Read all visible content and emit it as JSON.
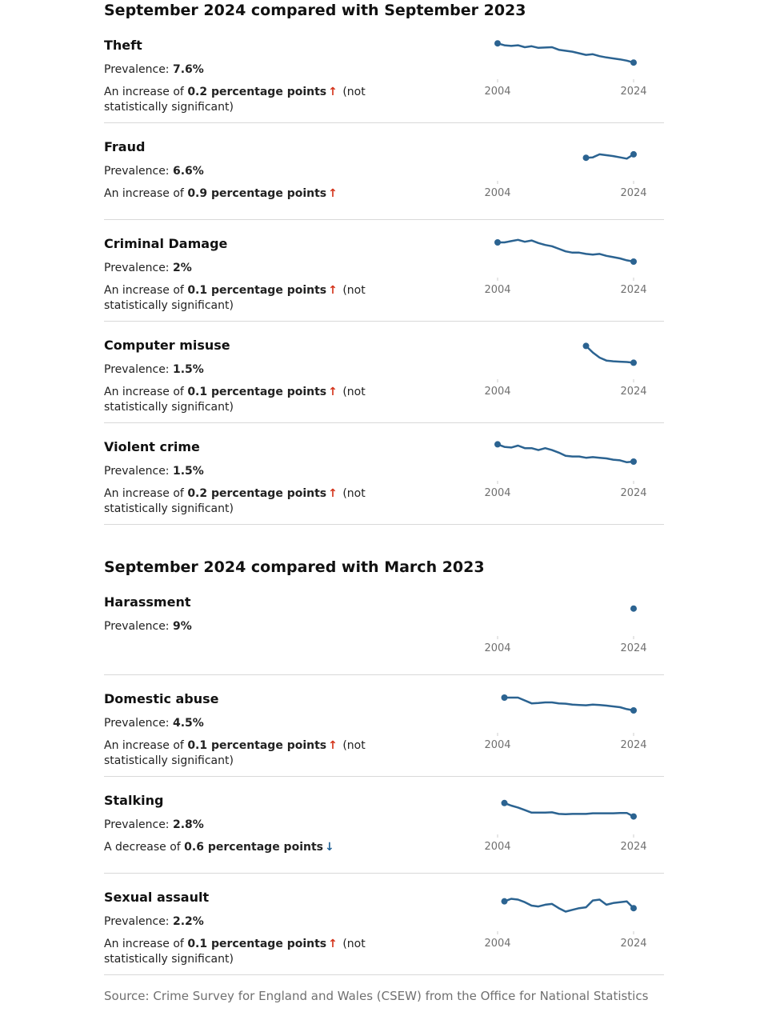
{
  "source": "Source: Crime Survey for England and Wales (CSEW) from the Office for National Statistics",
  "colors": {
    "line": "#2b6391",
    "increase_arrow": "#d4351c",
    "decrease_arrow": "#206095",
    "axis_label": "#707070"
  },
  "axis": {
    "start_label": "2004",
    "end_label": "2024"
  },
  "labels": {
    "prevalence_prefix": "Prevalence: "
  },
  "sections": [
    {
      "heading": "September 2024 compared with September 2023",
      "items": [
        {
          "title": "Theft",
          "prevalence": "7.6%",
          "change_prefix": "An increase of ",
          "change_value": "0.2 percentage points",
          "direction": "up",
          "change_suffix": " (not statistically significant)"
        },
        {
          "title": "Fraud",
          "prevalence": "6.6%",
          "change_prefix": "An increase of ",
          "change_value": "0.9 percentage points",
          "direction": "up",
          "change_suffix": ""
        },
        {
          "title": "Criminal Damage",
          "prevalence": "2%",
          "change_prefix": "An increase of ",
          "change_value": "0.1 percentage points",
          "direction": "up",
          "change_suffix": " (not statistically significant)"
        },
        {
          "title": "Computer misuse",
          "prevalence": "1.5%",
          "change_prefix": "An increase of ",
          "change_value": "0.1 percentage points",
          "direction": "up",
          "change_suffix": " (not statistically significant)"
        },
        {
          "title": "Violent crime",
          "prevalence": "1.5%",
          "change_prefix": "An increase of ",
          "change_value": "0.2 percentage points",
          "direction": "up",
          "change_suffix": " (not statistically significant)"
        }
      ]
    },
    {
      "heading": "September 2024 compared with March 2023",
      "items": [
        {
          "title": "Harassment",
          "prevalence": "9%",
          "change_prefix": "",
          "change_value": "",
          "direction": "",
          "change_suffix": ""
        },
        {
          "title": "Domestic abuse",
          "prevalence": "4.5%",
          "change_prefix": "An increase of ",
          "change_value": "0.1 percentage points",
          "direction": "up",
          "change_suffix": " (not statistically significant)"
        },
        {
          "title": "Stalking",
          "prevalence": "2.8%",
          "change_prefix": "A decrease of ",
          "change_value": "0.6 percentage points",
          "direction": "down",
          "change_suffix": ""
        },
        {
          "title": "Sexual assault",
          "prevalence": "2.2%",
          "change_prefix": "An increase of ",
          "change_value": "0.1 percentage points",
          "direction": "up",
          "change_suffix": " (not statistically significant)"
        }
      ]
    }
  ],
  "chart_data": [
    {
      "type": "line",
      "name": "Theft",
      "xlim": [
        2004,
        2024
      ],
      "ylim": [
        7.0,
        11.0
      ],
      "x": [
        2004,
        2005,
        2006,
        2007,
        2008,
        2009,
        2010,
        2011,
        2012,
        2013,
        2015,
        2017,
        2018,
        2019,
        2020,
        2022,
        2023,
        2024
      ],
      "y": [
        10.6,
        10.3,
        10.2,
        10.3,
        10.0,
        10.15,
        9.9,
        9.95,
        10.0,
        9.6,
        9.3,
        8.8,
        8.9,
        8.6,
        8.4,
        8.1,
        7.9,
        7.6
      ]
    },
    {
      "type": "line",
      "name": "Fraud",
      "xlim": [
        2004,
        2024
      ],
      "ylim": [
        5.0,
        8.0
      ],
      "x": [
        2017,
        2018,
        2019,
        2020,
        2021,
        2022,
        2023,
        2024
      ],
      "y": [
        6.2,
        6.25,
        6.6,
        6.5,
        6.4,
        6.25,
        6.1,
        6.6
      ]
    },
    {
      "type": "line",
      "name": "Criminal Damage",
      "xlim": [
        2004,
        2024
      ],
      "ylim": [
        1.5,
        5.5
      ],
      "x": [
        2004,
        2005,
        2006,
        2007,
        2008,
        2009,
        2010,
        2011,
        2012,
        2013,
        2014,
        2015,
        2016,
        2017,
        2018,
        2019,
        2020,
        2021,
        2022,
        2023,
        2024
      ],
      "y": [
        5.0,
        5.0,
        5.2,
        5.4,
        5.1,
        5.3,
        4.9,
        4.6,
        4.4,
        4.0,
        3.6,
        3.4,
        3.4,
        3.2,
        3.1,
        3.2,
        2.9,
        2.7,
        2.5,
        2.2,
        2.0
      ]
    },
    {
      "type": "line",
      "name": "Computer misuse",
      "xlim": [
        2004,
        2024
      ],
      "ylim": [
        1.0,
        4.5
      ],
      "x": [
        2017,
        2018,
        2019,
        2020,
        2021,
        2022,
        2023,
        2024
      ],
      "y": [
        3.8,
        2.9,
        2.2,
        1.8,
        1.7,
        1.65,
        1.6,
        1.5
      ]
    },
    {
      "type": "line",
      "name": "Violent crime",
      "xlim": [
        2004,
        2024
      ],
      "ylim": [
        1.0,
        3.0
      ],
      "x": [
        2004,
        2005,
        2006,
        2007,
        2008,
        2009,
        2010,
        2011,
        2012,
        2013,
        2014,
        2015,
        2016,
        2017,
        2018,
        2019,
        2020,
        2021,
        2022,
        2023,
        2024
      ],
      "y": [
        2.85,
        2.65,
        2.6,
        2.75,
        2.55,
        2.55,
        2.4,
        2.55,
        2.4,
        2.2,
        1.95,
        1.9,
        1.9,
        1.8,
        1.85,
        1.8,
        1.75,
        1.65,
        1.6,
        1.45,
        1.5
      ]
    },
    {
      "type": "line",
      "name": "Harassment",
      "xlim": [
        2004,
        2024
      ],
      "ylim": [
        5.0,
        12.0
      ],
      "x": [
        2024
      ],
      "y": [
        9.0
      ]
    },
    {
      "type": "line",
      "name": "Domestic abuse",
      "xlim": [
        2004,
        2024
      ],
      "ylim": [
        3.0,
        7.0
      ],
      "x": [
        2005,
        2006,
        2007,
        2009,
        2010,
        2011,
        2012,
        2013,
        2014,
        2015,
        2016,
        2017,
        2018,
        2019,
        2020,
        2022,
        2023,
        2024
      ],
      "y": [
        6.5,
        6.5,
        6.5,
        5.6,
        5.65,
        5.75,
        5.75,
        5.6,
        5.55,
        5.4,
        5.35,
        5.3,
        5.4,
        5.35,
        5.25,
        5.0,
        4.7,
        4.5
      ]
    },
    {
      "type": "line",
      "name": "Stalking",
      "xlim": [
        2004,
        2024
      ],
      "ylim": [
        2.0,
        6.0
      ],
      "x": [
        2005,
        2006,
        2007,
        2008,
        2009,
        2010,
        2011,
        2012,
        2013,
        2014,
        2015,
        2016,
        2017,
        2018,
        2019,
        2020,
        2021,
        2022,
        2023,
        2024
      ],
      "y": [
        4.9,
        4.5,
        4.2,
        3.8,
        3.4,
        3.4,
        3.4,
        3.45,
        3.2,
        3.15,
        3.2,
        3.2,
        3.2,
        3.3,
        3.3,
        3.3,
        3.3,
        3.35,
        3.35,
        2.8
      ]
    },
    {
      "type": "line",
      "name": "Sexual assault",
      "xlim": [
        2004,
        2024
      ],
      "ylim": [
        1.0,
        4.0
      ],
      "x": [
        2005,
        2006,
        2007,
        2008,
        2009,
        2010,
        2011,
        2012,
        2013,
        2014,
        2015,
        2016,
        2017,
        2018,
        2019,
        2020,
        2021,
        2022,
        2023,
        2024
      ],
      "y": [
        3.0,
        3.3,
        3.2,
        2.9,
        2.5,
        2.4,
        2.6,
        2.7,
        2.2,
        1.8,
        2.0,
        2.2,
        2.3,
        3.1,
        3.2,
        2.6,
        2.8,
        2.9,
        3.0,
        2.2
      ]
    }
  ]
}
